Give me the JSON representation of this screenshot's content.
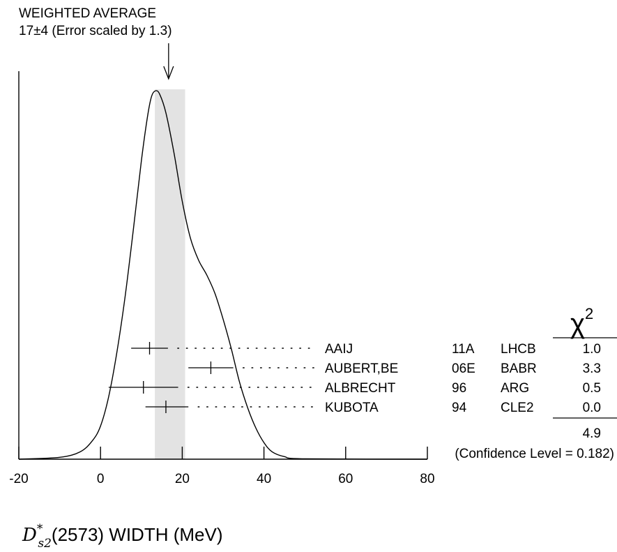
{
  "chart_data": {
    "type": "ideogram",
    "title": "D*s2(2573) WIDTH (MeV)",
    "title_parts": {
      "symbol": "D",
      "superscript": "*",
      "subscript": "s2",
      "rest": "(2573) WIDTH (MeV)"
    },
    "weighted_average": {
      "label": "WEIGHTED AVERAGE",
      "text": "17±4 (Error scaled by 1.3)",
      "value": 17,
      "error": 4,
      "scaled_error": 3.7
    },
    "xlim": [
      -20,
      80
    ],
    "xticks": [
      -20,
      0,
      20,
      40,
      60,
      80
    ],
    "xtick_labels": [
      "-20",
      "0",
      "20",
      "40",
      "60",
      "80"
    ],
    "band": [
      13.3,
      20.7
    ],
    "chi2_header": "χ2",
    "measurements": [
      {
        "author": "AAIJ",
        "year": "11A",
        "experiment": "LHCB",
        "value": 12.0,
        "err_lo": 4.5,
        "err_hi": 4.5,
        "chi2": "1.0"
      },
      {
        "author": "AUBERT,BE",
        "year": "06E",
        "experiment": "BABR",
        "value": 27.0,
        "err_lo": 5.5,
        "err_hi": 5.5,
        "chi2": "3.3"
      },
      {
        "author": "ALBRECHT",
        "year": "96",
        "experiment": "ARG",
        "value": 10.5,
        "err_lo": 8.5,
        "err_hi": 8.5,
        "chi2": "0.5"
      },
      {
        "author": "KUBOTA",
        "year": "94",
        "experiment": "CLE2",
        "value": 16.0,
        "err_lo": 5.0,
        "err_hi": 5.5,
        "chi2": "0.0"
      }
    ],
    "chi2_total": "4.9",
    "confidence_level": "(Confidence Level = 0.182)",
    "curve": [
      [
        -20,
        0.0
      ],
      [
        -10,
        0.005
      ],
      [
        -5,
        0.02
      ],
      [
        -2,
        0.05
      ],
      [
        0,
        0.09
      ],
      [
        2,
        0.17
      ],
      [
        4,
        0.29
      ],
      [
        6,
        0.44
      ],
      [
        8,
        0.62
      ],
      [
        10,
        0.81
      ],
      [
        11.5,
        0.93
      ],
      [
        12.5,
        0.985
      ],
      [
        13.5,
        1.0
      ],
      [
        14.5,
        0.99
      ],
      [
        16,
        0.94
      ],
      [
        18,
        0.83
      ],
      [
        20,
        0.7
      ],
      [
        22,
        0.6
      ],
      [
        24,
        0.54
      ],
      [
        26,
        0.5
      ],
      [
        28,
        0.45
      ],
      [
        30,
        0.38
      ],
      [
        32,
        0.3
      ],
      [
        34,
        0.21
      ],
      [
        36,
        0.14
      ],
      [
        38,
        0.085
      ],
      [
        40,
        0.045
      ],
      [
        42,
        0.02
      ],
      [
        45,
        0.007
      ],
      [
        50,
        0.001
      ],
      [
        80,
        0.0
      ]
    ]
  }
}
